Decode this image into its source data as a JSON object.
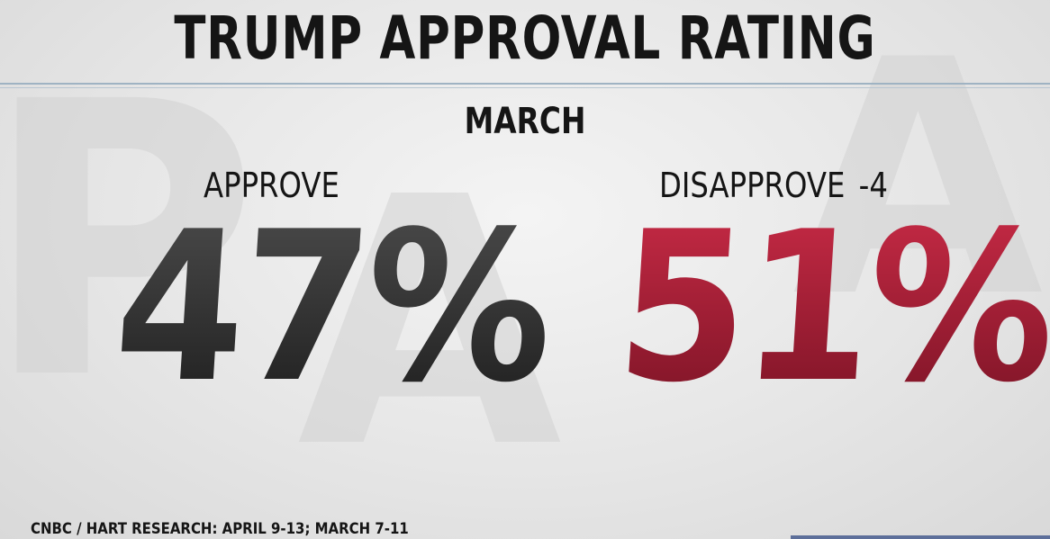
{
  "title": "TRUMP APPROVAL RATING",
  "subtitle": "MARCH",
  "approve": {
    "label": "APPROVE",
    "value": "47%"
  },
  "disapprove": {
    "label": "DISAPPROVE",
    "change": "-4",
    "value": "51%"
  },
  "source": "CNBC / HART RESEARCH: APRIL 9-13; MARCH 7-11",
  "colors": {
    "title": "#151515",
    "approve_value": "#3a3a3a",
    "disapprove_value": "#a41f36",
    "rule": "#9fb3c3",
    "background": "#e9e9e9"
  }
}
